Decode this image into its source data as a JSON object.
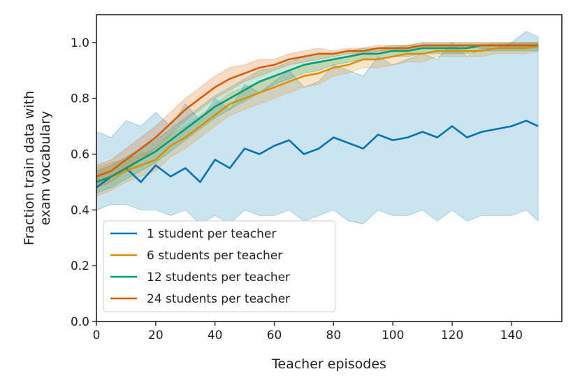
{
  "chart_data": {
    "type": "line",
    "title": "",
    "xlabel": "Teacher episodes",
    "ylabel_lines": [
      "Fraction train data with",
      "exam vocabulary"
    ],
    "xlim": [
      0,
      157
    ],
    "ylim": [
      0,
      1.1
    ],
    "xticks": [
      0,
      20,
      40,
      60,
      80,
      100,
      120,
      140
    ],
    "yticks": [
      0.0,
      0.2,
      0.4,
      0.6,
      0.8,
      1.0
    ],
    "xtick_labels": [
      "0",
      "20",
      "40",
      "60",
      "80",
      "100",
      "120",
      "140"
    ],
    "ytick_labels": [
      "0.0",
      "0.2",
      "0.4",
      "0.6",
      "0.8",
      "1.0"
    ],
    "grid": false,
    "legend_position": "lower-left",
    "x": [
      0,
      5,
      10,
      15,
      20,
      25,
      30,
      35,
      40,
      45,
      50,
      55,
      60,
      65,
      70,
      75,
      80,
      85,
      90,
      95,
      100,
      105,
      110,
      115,
      120,
      125,
      130,
      135,
      140,
      145,
      149
    ],
    "series": [
      {
        "name": "1 student per teacher",
        "color": "#0173b2",
        "values": [
          0.48,
          0.52,
          0.55,
          0.5,
          0.56,
          0.52,
          0.55,
          0.5,
          0.58,
          0.55,
          0.62,
          0.6,
          0.63,
          0.65,
          0.6,
          0.62,
          0.66,
          0.64,
          0.62,
          0.67,
          0.65,
          0.66,
          0.68,
          0.66,
          0.7,
          0.66,
          0.68,
          0.69,
          0.7,
          0.72,
          0.7
        ],
        "lower": [
          0.4,
          0.42,
          0.42,
          0.4,
          0.4,
          0.38,
          0.4,
          0.35,
          0.38,
          0.35,
          0.4,
          0.38,
          0.38,
          0.4,
          0.36,
          0.38,
          0.4,
          0.36,
          0.35,
          0.4,
          0.38,
          0.38,
          0.4,
          0.36,
          0.4,
          0.36,
          0.38,
          0.38,
          0.38,
          0.4,
          0.36
        ],
        "upper": [
          0.68,
          0.66,
          0.72,
          0.7,
          0.75,
          0.7,
          0.78,
          0.72,
          0.8,
          0.76,
          0.85,
          0.82,
          0.86,
          0.9,
          0.84,
          0.86,
          0.92,
          0.9,
          0.88,
          0.95,
          0.92,
          0.94,
          0.96,
          0.94,
          1.0,
          0.95,
          0.98,
          0.98,
          1.0,
          1.04,
          1.02
        ]
      },
      {
        "name": "6 students per teacher",
        "color": "#de8f05",
        "values": [
          0.5,
          0.52,
          0.54,
          0.56,
          0.58,
          0.63,
          0.66,
          0.7,
          0.74,
          0.78,
          0.8,
          0.82,
          0.84,
          0.86,
          0.88,
          0.89,
          0.91,
          0.92,
          0.94,
          0.94,
          0.95,
          0.96,
          0.96,
          0.97,
          0.97,
          0.97,
          0.97,
          0.98,
          0.98,
          0.98,
          0.99
        ],
        "lower": [
          0.45,
          0.47,
          0.5,
          0.52,
          0.54,
          0.59,
          0.62,
          0.66,
          0.7,
          0.74,
          0.76,
          0.78,
          0.8,
          0.82,
          0.84,
          0.85,
          0.88,
          0.89,
          0.91,
          0.91,
          0.92,
          0.93,
          0.93,
          0.95,
          0.95,
          0.95,
          0.95,
          0.96,
          0.96,
          0.96,
          0.97
        ],
        "upper": [
          0.55,
          0.57,
          0.58,
          0.6,
          0.62,
          0.67,
          0.7,
          0.74,
          0.78,
          0.82,
          0.84,
          0.86,
          0.88,
          0.9,
          0.92,
          0.93,
          0.94,
          0.95,
          0.97,
          0.97,
          0.98,
          0.99,
          0.99,
          0.99,
          0.99,
          0.99,
          0.99,
          1.0,
          1.0,
          1.0,
          1.0
        ]
      },
      {
        "name": "12 students per teacher",
        "color": "#029e73",
        "values": [
          0.5,
          0.52,
          0.55,
          0.58,
          0.61,
          0.65,
          0.69,
          0.73,
          0.77,
          0.8,
          0.83,
          0.86,
          0.88,
          0.9,
          0.92,
          0.93,
          0.94,
          0.95,
          0.96,
          0.96,
          0.97,
          0.97,
          0.98,
          0.98,
          0.98,
          0.98,
          0.99,
          0.99,
          0.99,
          0.99,
          0.99
        ],
        "lower": [
          0.46,
          0.48,
          0.51,
          0.54,
          0.57,
          0.61,
          0.65,
          0.69,
          0.73,
          0.76,
          0.79,
          0.82,
          0.85,
          0.87,
          0.89,
          0.9,
          0.92,
          0.93,
          0.94,
          0.94,
          0.95,
          0.95,
          0.96,
          0.96,
          0.96,
          0.96,
          0.97,
          0.97,
          0.97,
          0.97,
          0.97
        ],
        "upper": [
          0.54,
          0.56,
          0.59,
          0.62,
          0.65,
          0.69,
          0.73,
          0.77,
          0.81,
          0.84,
          0.87,
          0.9,
          0.91,
          0.93,
          0.95,
          0.96,
          0.96,
          0.97,
          0.98,
          0.98,
          0.99,
          0.99,
          1.0,
          1.0,
          1.0,
          1.0,
          1.0,
          1.0,
          1.0,
          1.0,
          1.0
        ]
      },
      {
        "name": "24 students per teacher",
        "color": "#d55e00",
        "values": [
          0.52,
          0.54,
          0.58,
          0.62,
          0.66,
          0.71,
          0.76,
          0.8,
          0.84,
          0.87,
          0.89,
          0.91,
          0.92,
          0.94,
          0.95,
          0.96,
          0.96,
          0.97,
          0.97,
          0.98,
          0.98,
          0.98,
          0.99,
          0.99,
          0.99,
          0.99,
          0.99,
          0.99,
          0.99,
          0.99,
          0.99
        ],
        "lower": [
          0.48,
          0.5,
          0.54,
          0.58,
          0.62,
          0.67,
          0.72,
          0.76,
          0.8,
          0.83,
          0.86,
          0.88,
          0.9,
          0.92,
          0.93,
          0.94,
          0.95,
          0.96,
          0.96,
          0.97,
          0.97,
          0.97,
          0.98,
          0.98,
          0.98,
          0.98,
          0.98,
          0.98,
          0.98,
          0.98,
          0.98
        ],
        "upper": [
          0.56,
          0.58,
          0.62,
          0.66,
          0.7,
          0.75,
          0.8,
          0.84,
          0.88,
          0.91,
          0.92,
          0.94,
          0.94,
          0.96,
          0.97,
          0.98,
          0.97,
          0.98,
          0.98,
          0.99,
          0.99,
          0.99,
          1.0,
          1.0,
          1.0,
          1.0,
          1.0,
          1.0,
          1.0,
          1.0,
          1.0
        ]
      }
    ]
  }
}
